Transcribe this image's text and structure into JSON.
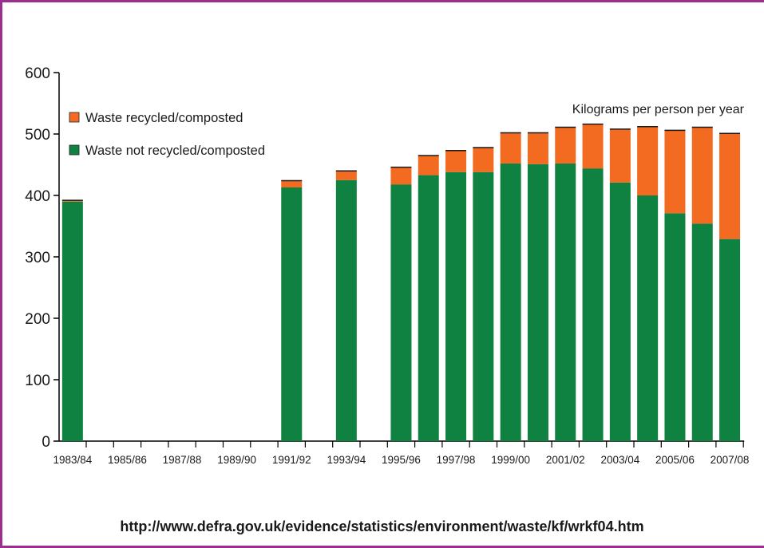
{
  "chart_data": {
    "type": "bar",
    "stacked": true,
    "unit_note": "Kilograms per person per year",
    "categories": [
      "1983/84",
      "1984/85",
      "1985/86",
      "1986/87",
      "1987/88",
      "1988/89",
      "1989/90",
      "1990/91",
      "1991/92",
      "1992/93",
      "1993/94",
      "1994/95",
      "1995/96",
      "1996/97",
      "1997/98",
      "1998/99",
      "1999/00",
      "2000/01",
      "2001/02",
      "2002/03",
      "2003/04",
      "2004/05",
      "2005/06",
      "2006/07",
      "2007/08"
    ],
    "x_tick_labels": [
      "1983/84",
      "1985/86",
      "1987/88",
      "1989/90",
      "1991/92",
      "1993/94",
      "1995/96",
      "1997/98",
      "1999/00",
      "2001/02",
      "2003/04",
      "2005/06",
      "2007/08"
    ],
    "series": [
      {
        "name": "Waste not recycled/composted",
        "color": "#0f8140",
        "values": [
          390,
          null,
          null,
          null,
          null,
          null,
          null,
          null,
          413,
          null,
          425,
          null,
          418,
          433,
          438,
          438,
          452,
          451,
          452,
          444,
          421,
          400,
          371,
          354,
          329
        ]
      },
      {
        "name": "Waste recycled/composted",
        "color": "#f26b21",
        "values": [
          2,
          null,
          null,
          null,
          null,
          null,
          null,
          null,
          11,
          null,
          15,
          null,
          28,
          32,
          35,
          40,
          50,
          51,
          59,
          72,
          87,
          112,
          135,
          157,
          172
        ]
      }
    ],
    "legend_order": [
      "Waste recycled/composted",
      "Waste not recycled/composted"
    ],
    "legend_position": "top-left",
    "ylim": [
      0,
      600
    ],
    "yticks": [
      0,
      100,
      200,
      300,
      400,
      500,
      600
    ],
    "grid": false
  },
  "source_url": "http://www.defra.gov.uk/evidence/statistics/environment/waste/kf/wrkf04.htm"
}
